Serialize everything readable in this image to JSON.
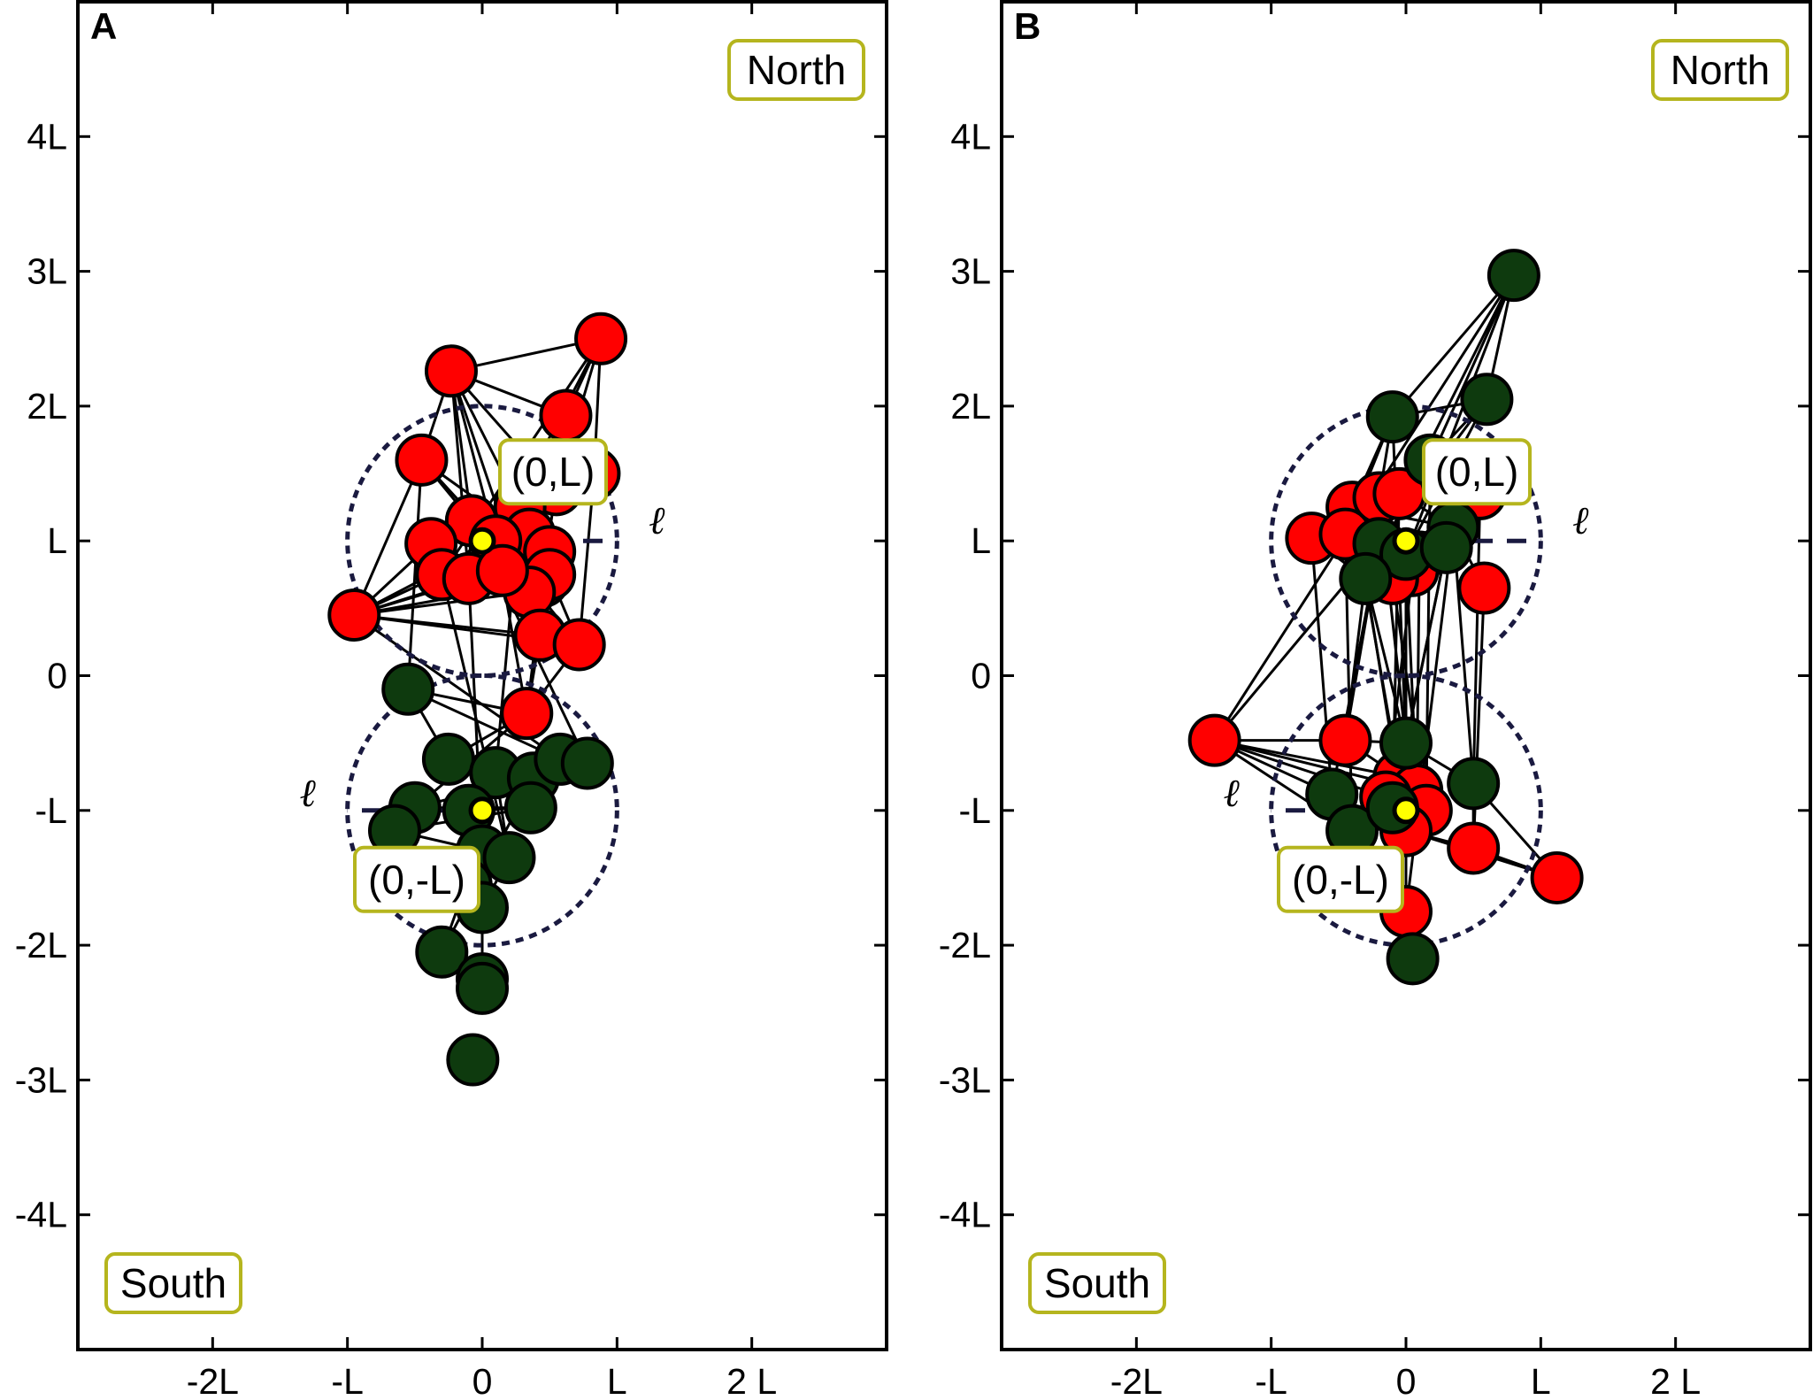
{
  "chart_data": [
    {
      "type": "scatter",
      "panel_label": "A",
      "xlim": [
        -3,
        3
      ],
      "ylim": [
        -5,
        5
      ],
      "x_ticks": [
        {
          "value": -2,
          "label": "-2L"
        },
        {
          "value": -1,
          "label": "-L"
        },
        {
          "value": 0,
          "label": "0"
        },
        {
          "value": 1,
          "label": "L"
        },
        {
          "value": 2,
          "label": "2 L"
        }
      ],
      "y_ticks": [
        {
          "value": 4,
          "label": "4L"
        },
        {
          "value": 3,
          "label": "3L"
        },
        {
          "value": 2,
          "label": "2L"
        },
        {
          "value": 1,
          "label": "L"
        },
        {
          "value": 0,
          "label": "0"
        },
        {
          "value": -1,
          "label": "-L"
        },
        {
          "value": -2,
          "label": "-2L"
        },
        {
          "value": -3,
          "label": "-3L"
        },
        {
          "value": -4,
          "label": "-4L"
        }
      ],
      "region_labels": {
        "north": "North",
        "south": "South"
      },
      "centers": [
        {
          "x": 0,
          "y": 1,
          "label": "(0,L)",
          "radius_label": "ℓ",
          "radius": 1
        },
        {
          "x": 0,
          "y": -1,
          "label": "(0,-L)",
          "radius_label": "ℓ",
          "radius": 1
        }
      ],
      "colors": {
        "red_group": "#ff0000",
        "green_group": "#0e3a0e",
        "center_point": "#ffff00",
        "circle": "#1a1a40",
        "label_box": "#b5b51e"
      },
      "red_nodes": [
        [
          0.88,
          2.5
        ],
        [
          -0.23,
          2.26
        ],
        [
          0.62,
          1.93
        ],
        [
          -0.45,
          1.6
        ],
        [
          0.83,
          1.5
        ],
        [
          0.55,
          1.38
        ],
        [
          0.28,
          1.25
        ],
        [
          -0.08,
          1.15
        ],
        [
          0.35,
          1.05
        ],
        [
          0.1,
          1.0
        ],
        [
          -0.38,
          0.98
        ],
        [
          0.5,
          0.92
        ],
        [
          -0.3,
          0.75
        ],
        [
          -0.1,
          0.72
        ],
        [
          0.45,
          0.7
        ],
        [
          0.5,
          0.75
        ],
        [
          0.35,
          0.62
        ],
        [
          0.15,
          0.78
        ],
        [
          -0.95,
          0.45
        ],
        [
          0.43,
          0.3
        ],
        [
          0.72,
          0.23
        ],
        [
          0.33,
          -0.28
        ]
      ],
      "green_nodes": [
        [
          -0.55,
          -0.1
        ],
        [
          -0.25,
          -0.62
        ],
        [
          0.1,
          -0.72
        ],
        [
          0.38,
          -0.76
        ],
        [
          0.58,
          -0.62
        ],
        [
          0.78,
          -0.65
        ],
        [
          -0.5,
          -0.98
        ],
        [
          -0.1,
          -1.0
        ],
        [
          0.36,
          -0.98
        ],
        [
          -0.65,
          -1.15
        ],
        [
          0.0,
          -1.3
        ],
        [
          0.2,
          -1.35
        ],
        [
          -0.12,
          -1.55
        ],
        [
          0.0,
          -1.72
        ],
        [
          -0.3,
          -2.05
        ],
        [
          0.0,
          -2.25
        ],
        [
          0.0,
          -2.32
        ],
        [
          -0.07,
          -2.85
        ]
      ],
      "edges": [
        [
          0,
          1
        ],
        [
          0,
          2
        ],
        [
          0,
          4
        ],
        [
          0,
          5
        ],
        [
          0,
          9
        ],
        [
          0,
          12
        ],
        [
          1,
          2
        ],
        [
          1,
          3
        ],
        [
          1,
          5
        ],
        [
          1,
          6
        ],
        [
          1,
          7
        ],
        [
          1,
          9
        ],
        [
          1,
          13
        ],
        [
          1,
          19
        ],
        [
          2,
          4
        ],
        [
          2,
          9
        ],
        [
          2,
          14
        ],
        [
          3,
          7
        ],
        [
          3,
          9
        ],
        [
          3,
          11
        ],
        [
          3,
          18
        ],
        [
          4,
          9
        ],
        [
          4,
          20
        ],
        [
          5,
          9
        ],
        [
          6,
          12
        ],
        [
          7,
          13
        ],
        [
          9,
          18
        ],
        [
          9,
          19
        ],
        [
          9,
          20
        ],
        [
          9,
          21
        ],
        [
          10,
          18
        ],
        [
          11,
          19
        ],
        [
          12,
          18
        ],
        [
          13,
          18
        ],
        [
          14,
          18
        ],
        [
          14,
          21
        ],
        [
          15,
          20
        ],
        [
          16,
          18
        ],
        [
          17,
          18
        ],
        [
          18,
          19
        ],
        [
          18,
          20
        ],
        [
          18,
          26
        ],
        [
          19,
          21
        ],
        [
          20,
          21
        ],
        [
          21,
          22
        ],
        [
          21,
          28
        ],
        [
          22,
          23
        ],
        [
          22,
          26
        ],
        [
          23,
          24
        ],
        [
          23,
          27
        ],
        [
          24,
          25
        ],
        [
          24,
          32
        ],
        [
          26,
          27
        ],
        [
          26,
          29
        ],
        [
          27,
          28
        ],
        [
          28,
          30
        ],
        [
          29,
          30
        ],
        [
          30,
          31
        ],
        [
          31,
          32
        ],
        [
          32,
          33
        ],
        [
          32,
          34
        ],
        [
          33,
          35
        ],
        [
          34,
          35
        ],
        [
          34,
          36
        ],
        [
          35,
          37
        ],
        [
          36,
          37
        ],
        [
          25,
          36
        ],
        [
          24,
          33
        ],
        [
          21,
          23
        ],
        [
          7,
          27
        ],
        [
          3,
          22
        ],
        [
          6,
          24
        ],
        [
          13,
          32
        ],
        [
          12,
          33
        ]
      ]
    },
    {
      "type": "scatter",
      "panel_label": "B",
      "xlim": [
        -3,
        3
      ],
      "ylim": [
        -5,
        5
      ],
      "x_ticks": [
        {
          "value": -2,
          "label": "-2L"
        },
        {
          "value": -1,
          "label": "-L"
        },
        {
          "value": 0,
          "label": "0"
        },
        {
          "value": 1,
          "label": "L"
        },
        {
          "value": 2,
          "label": "2 L"
        }
      ],
      "y_ticks": [
        {
          "value": 4,
          "label": "4L"
        },
        {
          "value": 3,
          "label": "3L"
        },
        {
          "value": 2,
          "label": "2L"
        },
        {
          "value": 1,
          "label": "L"
        },
        {
          "value": 0,
          "label": "0"
        },
        {
          "value": -1,
          "label": "-L"
        },
        {
          "value": -2,
          "label": "-2L"
        },
        {
          "value": -3,
          "label": "-3L"
        },
        {
          "value": -4,
          "label": "-4L"
        }
      ],
      "region_labels": {
        "north": "North",
        "south": "South"
      },
      "centers": [
        {
          "x": 0,
          "y": 1,
          "label": "(0,L)",
          "radius_label": "ℓ",
          "radius": 1
        },
        {
          "x": 0,
          "y": -1,
          "label": "(0,-L)",
          "radius_label": "ℓ",
          "radius": 1
        }
      ],
      "colors": {
        "red_group": "#ff0000",
        "green_group": "#0e3a0e",
        "center_point": "#ffff00",
        "circle": "#1a1a40",
        "label_box": "#b5b51e"
      },
      "red_nodes": [
        [
          -0.4,
          1.25
        ],
        [
          -0.2,
          1.32
        ],
        [
          -0.05,
          1.35
        ],
        [
          0.55,
          1.35
        ],
        [
          -0.7,
          1.02
        ],
        [
          -0.45,
          1.05
        ],
        [
          0.1,
          0.88
        ],
        [
          0.05,
          0.78
        ],
        [
          -0.1,
          0.72
        ],
        [
          0.58,
          0.65
        ],
        [
          -0.45,
          -0.48
        ],
        [
          -1.42,
          -0.48
        ],
        [
          -0.05,
          -0.75
        ],
        [
          0.08,
          -0.85
        ],
        [
          -0.15,
          -0.9
        ],
        [
          0.15,
          -1.0
        ],
        [
          0.0,
          -1.15
        ],
        [
          0.5,
          -1.28
        ],
        [
          1.12,
          -1.5
        ],
        [
          0.0,
          -1.75
        ]
      ],
      "green_nodes": [
        [
          0.8,
          2.97
        ],
        [
          0.6,
          2.05
        ],
        [
          -0.1,
          1.92
        ],
        [
          0.18,
          1.6
        ],
        [
          0.35,
          1.1
        ],
        [
          -0.2,
          0.98
        ],
        [
          0.0,
          0.9
        ],
        [
          -0.3,
          0.72
        ],
        [
          0.3,
          0.95
        ],
        [
          0.0,
          -0.5
        ],
        [
          0.5,
          -0.8
        ],
        [
          -0.55,
          -0.88
        ],
        [
          -0.4,
          -1.15
        ],
        [
          -0.1,
          -0.98
        ],
        [
          0.05,
          -2.1
        ]
      ],
      "edges": [
        [
          20,
          21
        ],
        [
          20,
          22
        ],
        [
          20,
          23
        ],
        [
          20,
          25
        ],
        [
          20,
          26
        ],
        [
          20,
          11
        ],
        [
          21,
          22
        ],
        [
          21,
          23
        ],
        [
          21,
          25
        ],
        [
          21,
          26
        ],
        [
          22,
          0
        ],
        [
          22,
          1
        ],
        [
          22,
          5
        ],
        [
          23,
          2
        ],
        [
          23,
          3
        ],
        [
          0,
          5
        ],
        [
          0,
          24
        ],
        [
          1,
          26
        ],
        [
          2,
          24
        ],
        [
          4,
          5
        ],
        [
          4,
          27
        ],
        [
          5,
          27
        ],
        [
          6,
          24
        ],
        [
          7,
          26
        ],
        [
          8,
          27
        ],
        [
          9,
          24
        ],
        [
          3,
          24
        ],
        [
          11,
          10
        ],
        [
          11,
          12
        ],
        [
          11,
          13
        ],
        [
          11,
          14
        ],
        [
          11,
          31
        ],
        [
          11,
          32
        ],
        [
          11,
          25
        ],
        [
          10,
          12
        ],
        [
          10,
          29
        ],
        [
          10,
          27
        ],
        [
          12,
          15
        ],
        [
          13,
          16
        ],
        [
          14,
          32
        ],
        [
          15,
          16
        ],
        [
          16,
          33
        ],
        [
          16,
          17
        ],
        [
          17,
          18
        ],
        [
          17,
          30
        ],
        [
          18,
          30
        ],
        [
          18,
          16
        ],
        [
          19,
          34
        ],
        [
          19,
          16
        ],
        [
          29,
          30
        ],
        [
          29,
          33
        ],
        [
          31,
          32
        ],
        [
          32,
          33
        ],
        [
          33,
          34
        ],
        [
          26,
          29
        ],
        [
          27,
          29
        ],
        [
          28,
          29
        ],
        [
          24,
          30
        ],
        [
          25,
          31
        ],
        [
          5,
          32
        ],
        [
          6,
          13
        ],
        [
          7,
          14
        ],
        [
          8,
          15
        ],
        [
          9,
          17
        ],
        [
          0,
          12
        ],
        [
          1,
          29
        ],
        [
          2,
          33
        ],
        [
          3,
          30
        ],
        [
          4,
          31
        ],
        [
          26,
          13
        ],
        [
          27,
          16
        ],
        [
          28,
          12
        ],
        [
          24,
          19
        ],
        [
          25,
          10
        ],
        [
          23,
          15
        ],
        [
          22,
          29
        ]
      ]
    }
  ]
}
